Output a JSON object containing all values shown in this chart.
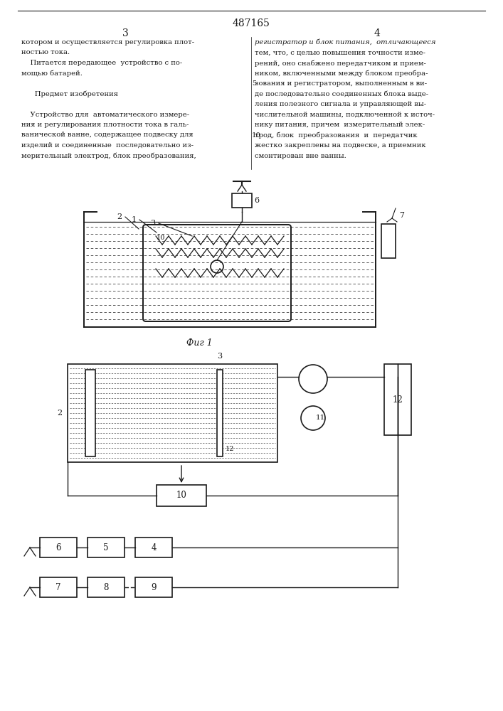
{
  "title": "487165",
  "page_left": "3",
  "page_right": "4",
  "fig_caption": "Фиг 1",
  "text_col1_lines": [
    "котором и осуществляется регулировка плот-",
    "ностью тока.",
    "    Питается передающее  устройство с по-",
    "мощью батарей.",
    "",
    "      Предмет изобретения",
    "",
    "    Устройство для  автоматического измере-",
    "ния и регулирования плотности тока в галь-",
    "ванической ванне, содержащее подвеску для",
    "изделий и соединенные  последовательно из-",
    "мерительный электрод, блок преобразования,"
  ],
  "text_col2_lines": [
    "регистратор и блок питания,  отличающееся",
    "тем, что, с целью повышения точности изме-",
    "рений, оно снабжено передатчиком и прием-",
    "ником, включенными между блоком преобра-",
    "зования и регистратором, выполненным в ви-",
    "де последовательно соединенных блока выде-",
    "ления полезного сигнала и управляющей вы-",
    "числительной машины, подключенной к источ-",
    "нику питания, причем  измерительный элек-",
    "трод, блок  преобразования  и  передатчик",
    "жестко закреплены на подвеске, а приемник",
    "смонтирован вне ванны."
  ],
  "background_color": "#ffffff",
  "line_color": "#1a1a1a",
  "text_color": "#1a1a1a"
}
